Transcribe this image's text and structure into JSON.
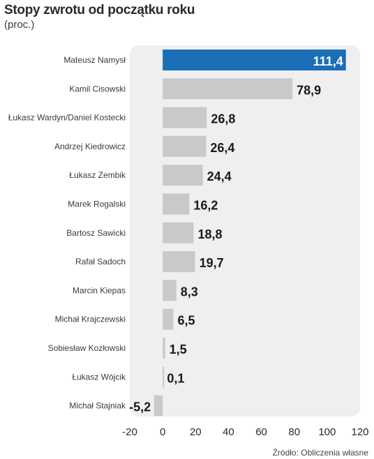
{
  "title": "Stopy zwrotu od początku roku",
  "subtitle": "(proc.)",
  "source": "Źródło: Obliczenia własne",
  "colors": {
    "highlight": "#1a6fb6",
    "bar": "#c9c9cb",
    "panel": "#efeff0"
  },
  "chart_data": {
    "type": "bar",
    "orientation": "horizontal",
    "categories": [
      "Mateusz Namysł",
      "Kamil Cisowski",
      "Łukasz Wardyn/Daniel Kostecki",
      "Andrzej Kiedrowicz",
      "Łukasz Zembik",
      "Marek Rogalski",
      "Bartosz Sawicki",
      "Rafał Sadoch",
      "Marcin Kiepas",
      "Michał Krajczewski",
      "Sobiesław Kozłowski",
      "Łukasz Wójcik",
      "Michał Stajniak"
    ],
    "values": [
      111.4,
      78.9,
      26.8,
      26.4,
      24.4,
      16.2,
      18.8,
      19.7,
      8.3,
      6.5,
      1.5,
      0.1,
      -5.2
    ],
    "value_labels": [
      "111,4",
      "78,9",
      "26,8",
      "26,4",
      "24,4",
      "16,2",
      "18,8",
      "19,7",
      "8,3",
      "6,5",
      "1,5",
      "0,1",
      "-5,2"
    ],
    "highlighted_index": 0,
    "xlim": [
      -20,
      120
    ],
    "xticks": [
      -20,
      0,
      20,
      40,
      60,
      80,
      100,
      120
    ],
    "xtick_labels": [
      "-20",
      "0",
      "20",
      "40",
      "60",
      "80",
      "100",
      "120"
    ],
    "xlabel": "",
    "ylabel": "",
    "grid": false,
    "legend": "none"
  }
}
